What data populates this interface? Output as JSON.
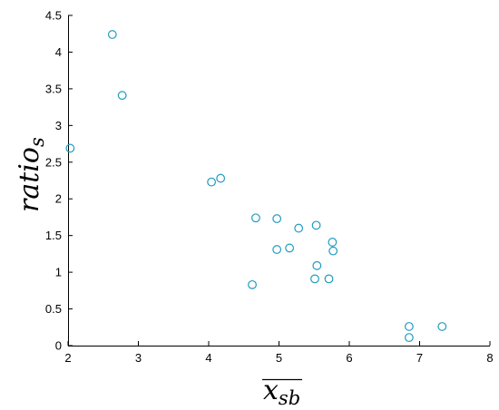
{
  "chart_data": {
    "type": "scatter",
    "xlabel_main": "x",
    "xlabel_sub": "sb",
    "ylabel_main": "ratio",
    "ylabel_sub": "s",
    "xlim": [
      2,
      8
    ],
    "ylim": [
      0,
      4.5
    ],
    "x_ticks": [
      "2",
      "3",
      "4",
      "5",
      "6",
      "7",
      "8"
    ],
    "y_ticks": [
      "0",
      "0.5",
      "1",
      "1.5",
      "2",
      "2.5",
      "3",
      "3.5",
      "4",
      "4.5"
    ],
    "grid": false,
    "marker_color": "#1f9bbf",
    "points": [
      {
        "x": 2.03,
        "y": 2.69
      },
      {
        "x": 2.63,
        "y": 4.24
      },
      {
        "x": 2.77,
        "y": 3.41
      },
      {
        "x": 4.04,
        "y": 2.23
      },
      {
        "x": 4.17,
        "y": 2.28
      },
      {
        "x": 4.62,
        "y": 0.83
      },
      {
        "x": 4.67,
        "y": 1.74
      },
      {
        "x": 4.97,
        "y": 1.73
      },
      {
        "x": 4.97,
        "y": 1.31
      },
      {
        "x": 5.15,
        "y": 1.33
      },
      {
        "x": 5.28,
        "y": 1.6
      },
      {
        "x": 5.51,
        "y": 0.91
      },
      {
        "x": 5.53,
        "y": 1.64
      },
      {
        "x": 5.54,
        "y": 1.09
      },
      {
        "x": 5.71,
        "y": 0.91
      },
      {
        "x": 5.76,
        "y": 1.41
      },
      {
        "x": 5.77,
        "y": 1.29
      },
      {
        "x": 6.85,
        "y": 0.26
      },
      {
        "x": 6.85,
        "y": 0.11
      },
      {
        "x": 7.32,
        "y": 0.26
      }
    ]
  }
}
